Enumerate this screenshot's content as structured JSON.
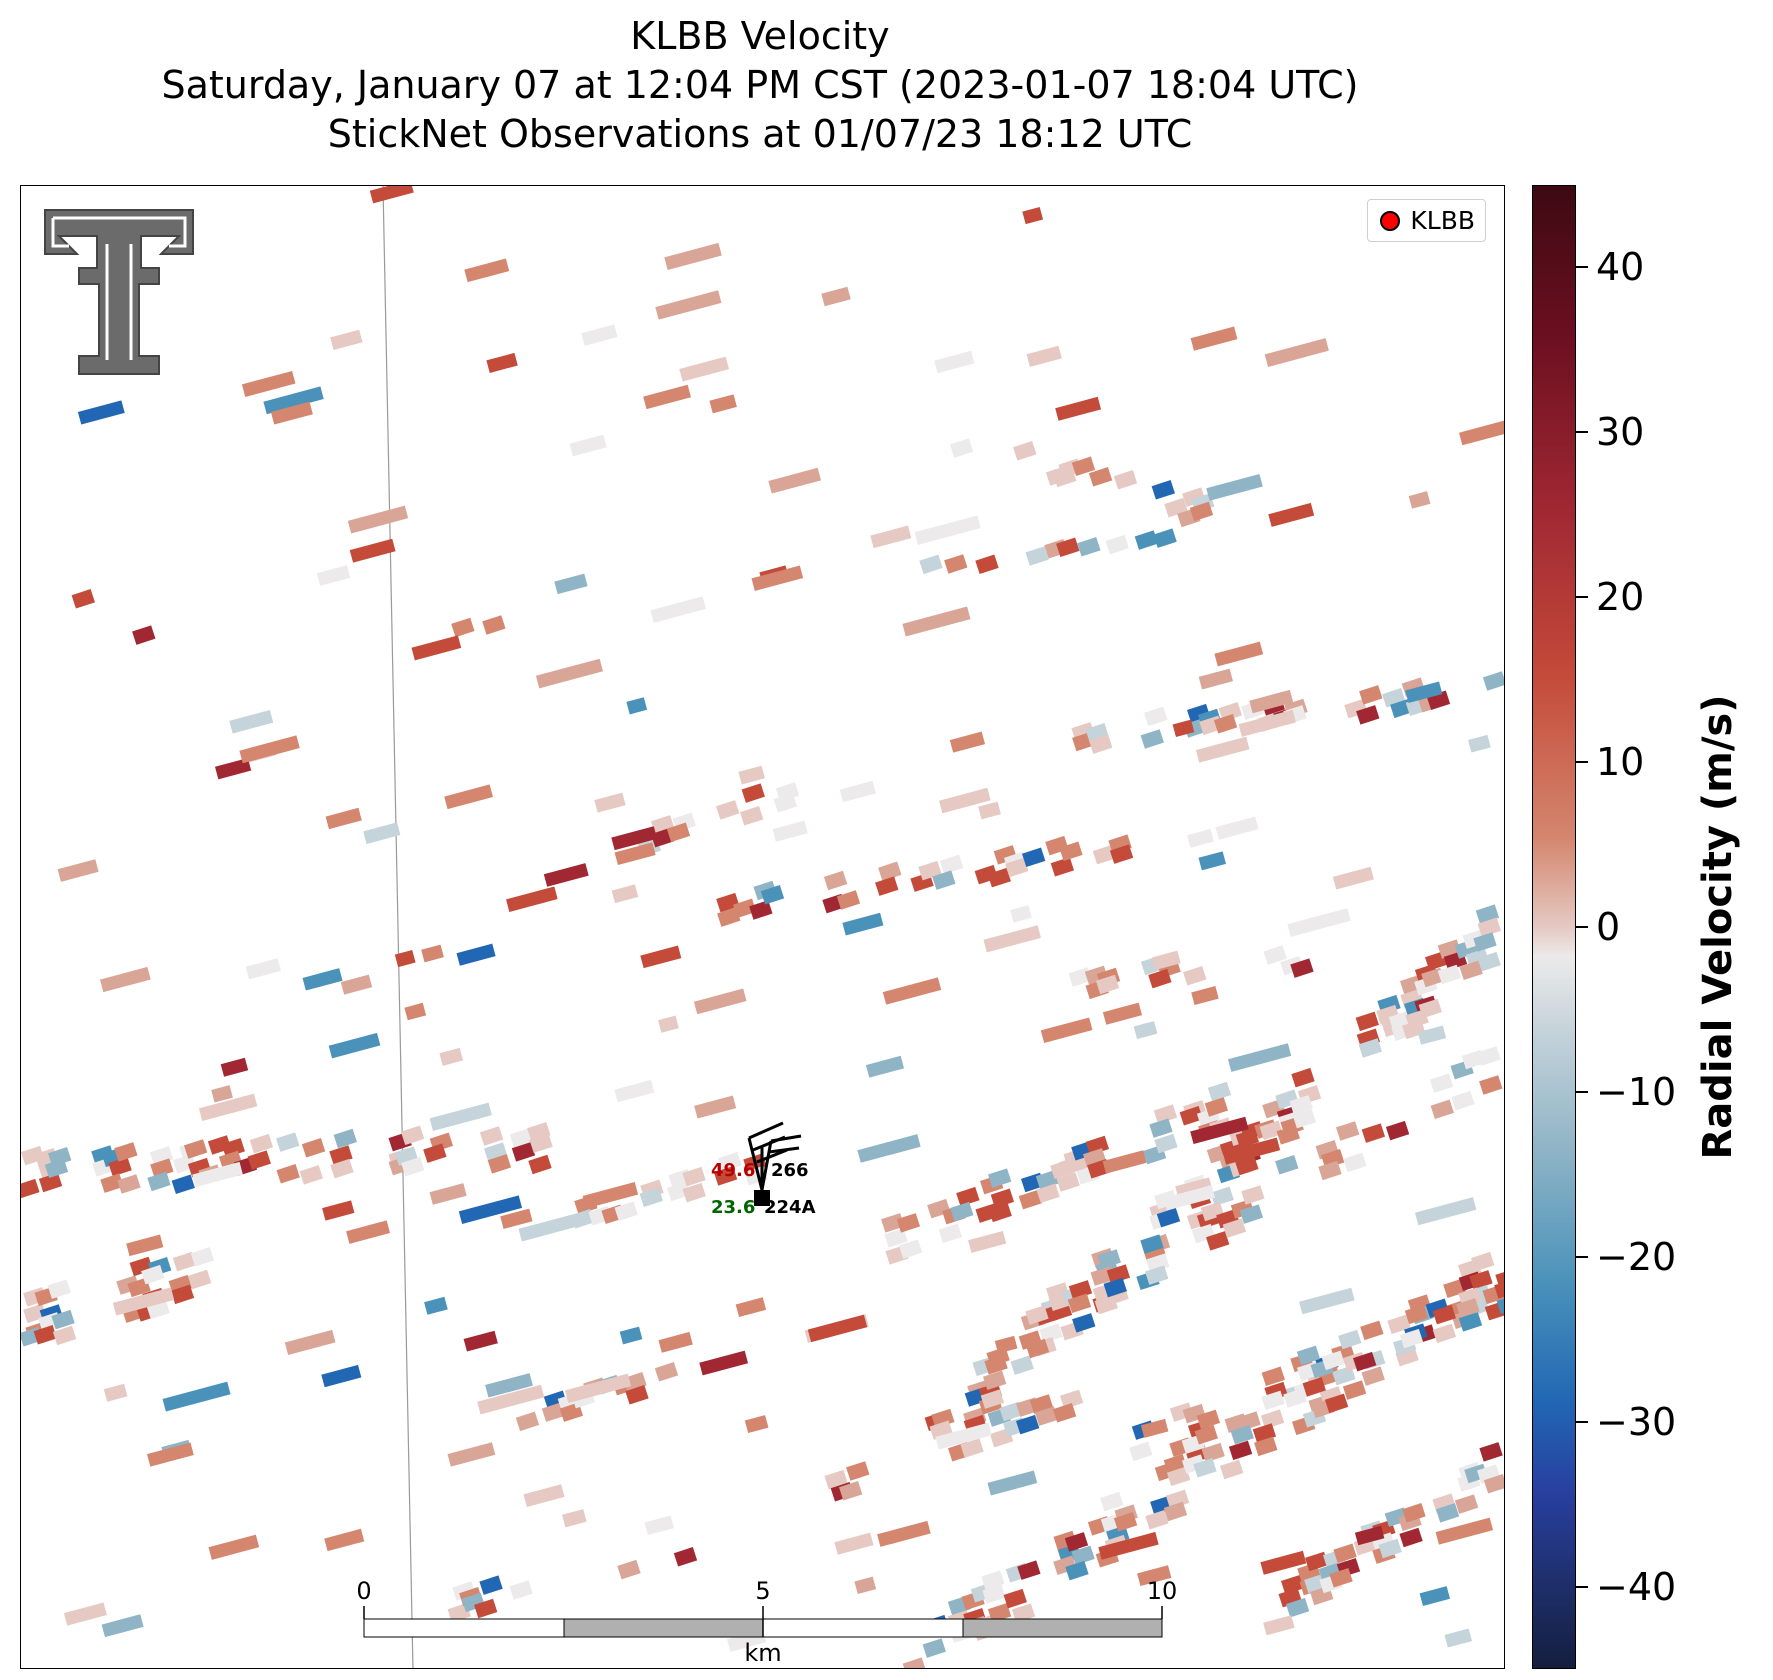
{
  "title": {
    "line1": "KLBB Velocity",
    "line2": "Saturday, January 07 at 12:04 PM CST (2023-01-07 18:04 UTC)",
    "line3": "StickNet Observations at 01/07/23 18:12 UTC"
  },
  "legend": {
    "label": "KLBB",
    "marker_color": "#ff0000"
  },
  "logo": {
    "name": "texas-tech-double-t-logo",
    "color": "#6b6b6b"
  },
  "stations": [
    {
      "id": "266",
      "temperature": "49.6",
      "dewpoint": null
    },
    {
      "id": "224A",
      "temperature": null,
      "dewpoint": "23.6"
    }
  ],
  "scale_bar": {
    "tick_labels": [
      "0",
      "5",
      "10"
    ],
    "unit": "km"
  },
  "colorbar": {
    "label": "Radial Velocity (m/s)",
    "range": [
      -45,
      45
    ],
    "tick_values": [
      40,
      30,
      20,
      10,
      0,
      -10,
      -20,
      -30,
      -40
    ],
    "tick_labels": [
      "40",
      "30",
      "20",
      "10",
      "0",
      "−10",
      "−20",
      "−30",
      "−40"
    ],
    "colormap": [
      "#141e3e",
      "#2840a0",
      "#2167b4",
      "#4a92ba",
      "#8fb4c6",
      "#c5d3da",
      "#eceaea",
      "#e5c9c2",
      "#d4866e",
      "#c44a39",
      "#a12833",
      "#6b0f20",
      "#3d0a12"
    ]
  },
  "colors": {
    "temperature_text": "#b80000",
    "dewpoint_text": "#006400",
    "scale_fill_gray": "#b0b0b0",
    "boundary_line": "#9a9a9a"
  }
}
